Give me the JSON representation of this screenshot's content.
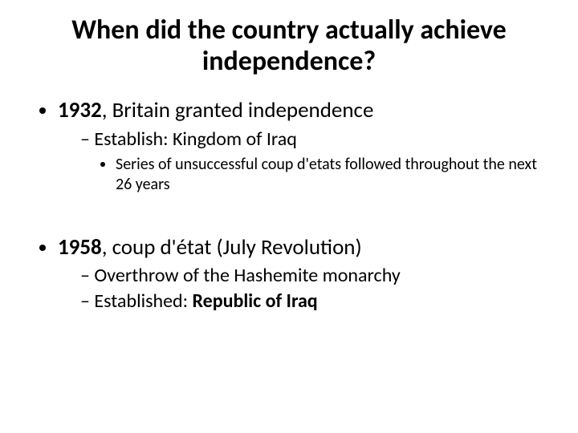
{
  "title": "When did the country actually achieve independence?",
  "b1_year": "1932",
  "b1_rest": ", Britain granted independence",
  "b1_sub1_plain": "Establish: ",
  "b1_sub1_bold": "Kingdom of Iraq",
  "b1_sub1_sub": "Series of unsuccessful coup d'etats followed throughout the next 26 years",
  "b2_year": "1958",
  "b2_rest": ", coup d'état (July Revolution)",
  "b2_sub1": "Overthrow of the Hashemite monarchy",
  "b2_sub2_plain": "Established: ",
  "b2_sub2_bold": "Republic of Iraq",
  "colors": {
    "text": "#000000",
    "background": "#ffffff"
  },
  "typography": {
    "title_fontsize": 34,
    "lvl1_fontsize": 27,
    "lvl2_fontsize": 24,
    "lvl3_fontsize": 20,
    "font_family": "Calibri"
  }
}
